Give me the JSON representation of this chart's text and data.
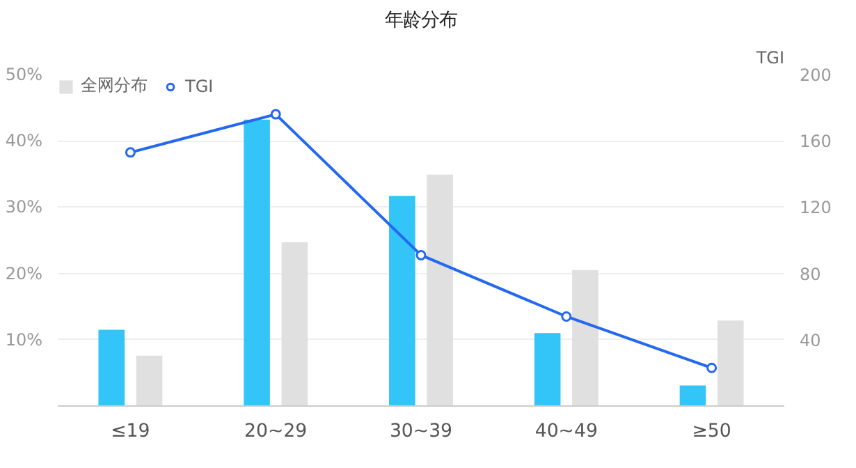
{
  "chart_data": {
    "type": "bar",
    "title": "年龄分布",
    "y2label": "TGI",
    "categories": [
      "≤19",
      "20~29",
      "30~39",
      "40~49",
      "≥50"
    ],
    "series": [
      {
        "color": "#33c5f8",
        "values": [
          11.5,
          43.2,
          31.7,
          11.0,
          3.1
        ]
      },
      {
        "name": "全网分布",
        "color": "#e0e0e0",
        "values": [
          7.6,
          24.7,
          34.9,
          20.5,
          12.9
        ]
      },
      {
        "name": "TGI",
        "type": "line",
        "axis": "y2",
        "color": "#2468f2",
        "marker": "circle",
        "values": [
          153,
          176,
          91,
          54,
          23
        ]
      }
    ],
    "ylim": [
      0,
      50
    ],
    "yticks": [
      {
        "value": 10,
        "label": "10%"
      },
      {
        "value": 20,
        "label": "20%"
      },
      {
        "value": 30,
        "label": "30%"
      },
      {
        "value": 40,
        "label": "40%"
      },
      {
        "value": 50,
        "label": "50%"
      }
    ],
    "y2lim": [
      0,
      200
    ],
    "y2ticks": [
      40,
      80,
      120,
      160,
      200
    ],
    "grid": "y",
    "legend": "top left"
  }
}
